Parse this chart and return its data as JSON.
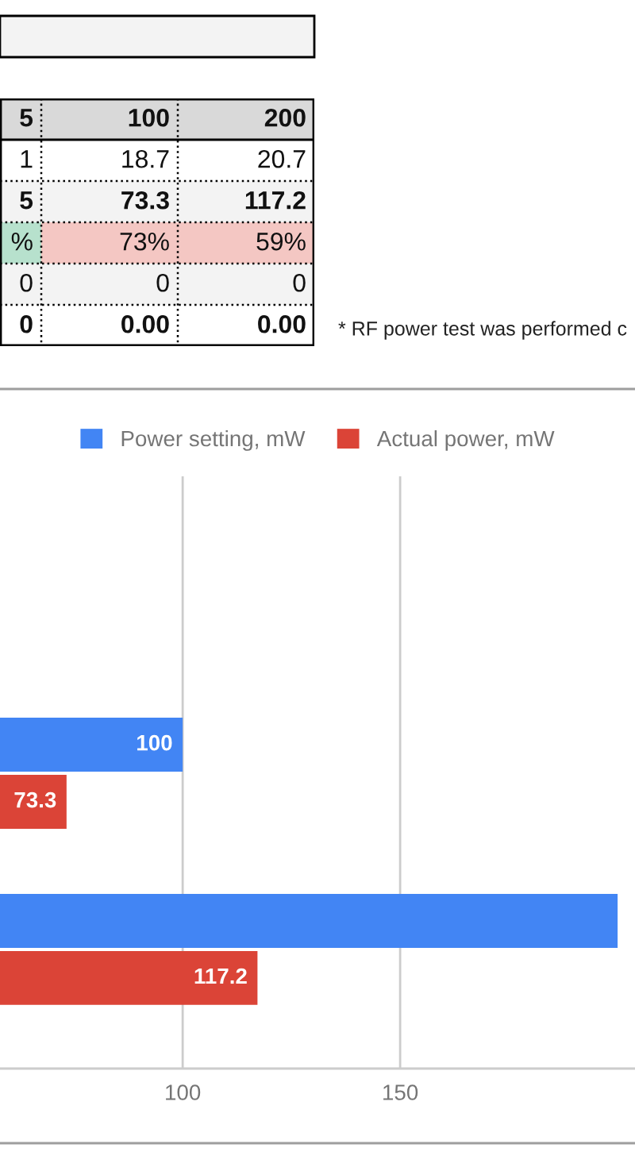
{
  "chart_data": [
    {
      "type": "other",
      "categories": [
        "5",
        "100",
        "200"
      ],
      "cell_labels": [
        [
          "1",
          "18.7",
          "20.7"
        ],
        [
          "5",
          "73.3",
          "117.2"
        ],
        [
          "%",
          "73%",
          "59%"
        ],
        [
          "0",
          "0",
          "0"
        ],
        [
          "0",
          "0.00",
          "0.00"
        ]
      ],
      "colors": [
        "#d9d9d9",
        "#d9d9d9",
        "#d9d9d9",
        "#ffffff",
        "#ffffff",
        "#ffffff",
        "#f3f3f3",
        "#f3f3f3",
        "#f3f3f3",
        "#b7e1cd",
        "#f4c7c3",
        "#f4c7c3",
        "#f3f3f3",
        "#f3f3f3",
        "#f3f3f3",
        "#ffffff",
        "#ffffff",
        "#ffffff"
      ],
      "annotations": [
        "* RF power test was performed c"
      ]
    },
    {
      "type": "bar",
      "orientation": "horizontal",
      "categories": [
        null,
        null,
        null
      ],
      "series": [
        {
          "name": "Power setting, mW",
          "color": "#4285f4",
          "values": [
            null,
            100,
            200
          ],
          "value_labels": [
            null,
            "100",
            null
          ]
        },
        {
          "name": "Actual power, mW",
          "color": "#db4437",
          "values": [
            null,
            73.3,
            117.2
          ],
          "value_labels": [
            null,
            "73.3",
            "117.2"
          ]
        }
      ],
      "xlim": [
        58,
        204
      ],
      "xticks": [
        100,
        150
      ],
      "grid": "x",
      "legend": "top"
    }
  ]
}
